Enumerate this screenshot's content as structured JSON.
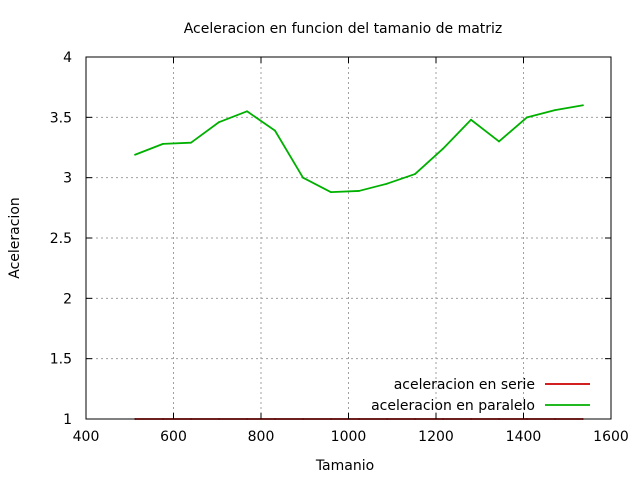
{
  "chart_data": {
    "type": "line",
    "title": "Aceleracion en funcion del tamanio de matriz",
    "xlabel": "Tamanio",
    "ylabel": "Aceleracion",
    "xlim": [
      400,
      1600
    ],
    "ylim": [
      1,
      4
    ],
    "xticks": [
      400,
      600,
      800,
      1000,
      1200,
      1400,
      1600
    ],
    "yticks": [
      1,
      1.5,
      2,
      2.5,
      3,
      3.5,
      4
    ],
    "xtick_labels": [
      "400",
      "600",
      "800",
      "1000",
      "1200",
      "1400",
      "1600"
    ],
    "ytick_labels": [
      "1",
      "1.5",
      "2",
      "2.5",
      "3",
      "3.5",
      "4"
    ],
    "grid": true,
    "legend_position": "bottom-right",
    "series": [
      {
        "name": "aceleracion en serie",
        "color": "#cc0000",
        "x": [
          512,
          576,
          640,
          704,
          768,
          832,
          896,
          960,
          1024,
          1088,
          1152,
          1216,
          1280,
          1344,
          1408,
          1472,
          1536
        ],
        "values": [
          1,
          1,
          1,
          1,
          1,
          1,
          1,
          1,
          1,
          1,
          1,
          1,
          1,
          1,
          1,
          1,
          1
        ]
      },
      {
        "name": "aceleracion en paralelo",
        "color": "#00b000",
        "x": [
          512,
          576,
          640,
          704,
          768,
          832,
          896,
          960,
          1024,
          1088,
          1152,
          1216,
          1280,
          1344,
          1408,
          1472,
          1536
        ],
        "values": [
          3.19,
          3.28,
          3.29,
          3.46,
          3.55,
          3.39,
          3.0,
          2.88,
          2.89,
          2.95,
          3.03,
          3.24,
          3.48,
          3.3,
          3.5,
          3.56,
          3.6
        ]
      }
    ]
  }
}
